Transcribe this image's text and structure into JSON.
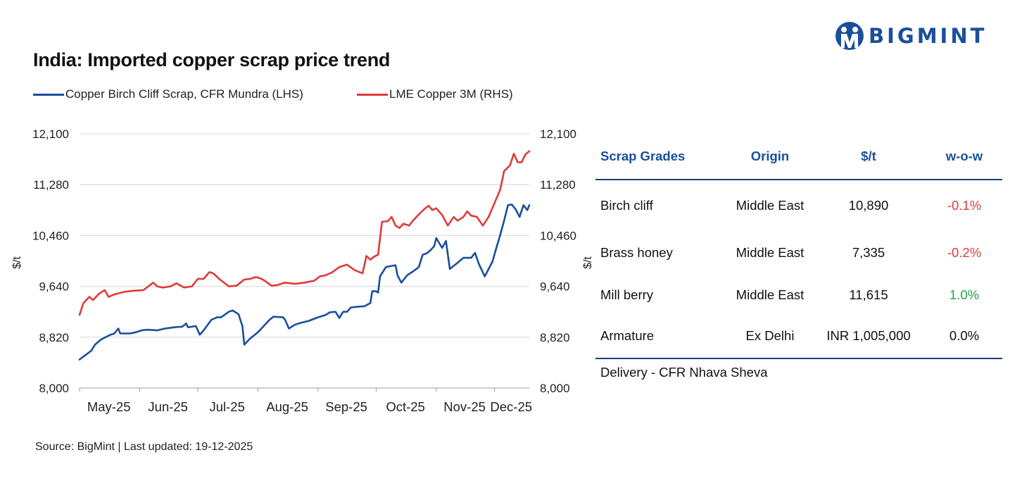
{
  "title": "India: Imported copper scrap price trend",
  "brand": {
    "name": "BIGMINT",
    "color": "#1a4f9c"
  },
  "source": "Source: BigMint | Last updated: 19-12-2025",
  "chart_data": {
    "type": "line",
    "title": "India: Imported copper scrap price trend",
    "x_labels": [
      "May-25",
      "Jun-25",
      "Jul-25",
      "Aug-25",
      "Sep-25",
      "Oct-25",
      "Nov-25",
      "Dec-25"
    ],
    "x_range": [
      "2025-05-01",
      "2025-12-19"
    ],
    "ylabel_left": "$/t",
    "ylabel_right": "$/t",
    "ylim_left": [
      8000,
      12100
    ],
    "ylim_right": [
      8000,
      12100
    ],
    "yticks_left": [
      "8,000",
      "8,820",
      "9,640",
      "10,460",
      "11,280",
      "12,100"
    ],
    "yticks_right": [
      "8,000",
      "8,820",
      "9,640",
      "10,460",
      "11,280",
      "12,100"
    ],
    "grid": true,
    "legend_position": "top",
    "series": [
      {
        "name": "Copper Birch Cliff Scrap, CFR Mundra (LHS)",
        "axis": "left",
        "color": "#1a4f9c",
        "points": [
          [
            "2025-05-01",
            8460
          ],
          [
            "2025-05-04",
            8530
          ],
          [
            "2025-05-07",
            8600
          ],
          [
            "2025-05-09",
            8700
          ],
          [
            "2025-05-12",
            8780
          ],
          [
            "2025-05-15",
            8830
          ],
          [
            "2025-05-17",
            8860
          ],
          [
            "2025-05-19",
            8880
          ],
          [
            "2025-05-21",
            8960
          ],
          [
            "2025-05-22",
            8880
          ],
          [
            "2025-05-27",
            8880
          ],
          [
            "2025-05-30",
            8900
          ],
          [
            "2025-06-02",
            8930
          ],
          [
            "2025-06-05",
            8940
          ],
          [
            "2025-06-10",
            8930
          ],
          [
            "2025-06-14",
            8960
          ],
          [
            "2025-06-19",
            8980
          ],
          [
            "2025-06-23",
            8990
          ],
          [
            "2025-06-25",
            9040
          ],
          [
            "2025-06-26",
            8980
          ],
          [
            "2025-06-30",
            9000
          ],
          [
            "2025-07-02",
            8860
          ],
          [
            "2025-07-04",
            8930
          ],
          [
            "2025-07-08",
            9100
          ],
          [
            "2025-07-11",
            9140
          ],
          [
            "2025-07-13",
            9140
          ],
          [
            "2025-07-17",
            9230
          ],
          [
            "2025-07-19",
            9250
          ],
          [
            "2025-07-22",
            9190
          ],
          [
            "2025-07-24",
            9000
          ],
          [
            "2025-07-25",
            8700
          ],
          [
            "2025-07-28",
            8800
          ],
          [
            "2025-08-01",
            8900
          ],
          [
            "2025-08-04",
            9000
          ],
          [
            "2025-08-07",
            9100
          ],
          [
            "2025-08-09",
            9150
          ],
          [
            "2025-08-14",
            9140
          ],
          [
            "2025-08-15",
            9100
          ],
          [
            "2025-08-17",
            8960
          ],
          [
            "2025-08-20",
            9020
          ],
          [
            "2025-08-23",
            9050
          ],
          [
            "2025-08-27",
            9080
          ],
          [
            "2025-09-01",
            9140
          ],
          [
            "2025-09-05",
            9180
          ],
          [
            "2025-09-07",
            9220
          ],
          [
            "2025-09-10",
            9230
          ],
          [
            "2025-09-12",
            9130
          ],
          [
            "2025-09-14",
            9230
          ],
          [
            "2025-09-16",
            9230
          ],
          [
            "2025-09-18",
            9300
          ],
          [
            "2025-09-21",
            9310
          ],
          [
            "2025-09-25",
            9320
          ],
          [
            "2025-09-28",
            9370
          ],
          [
            "2025-09-29",
            9560
          ],
          [
            "2025-10-01",
            9560
          ],
          [
            "2025-10-02",
            9540
          ],
          [
            "2025-10-03",
            9800
          ],
          [
            "2025-10-06",
            9950
          ],
          [
            "2025-10-09",
            9970
          ],
          [
            "2025-10-11",
            9980
          ],
          [
            "2025-10-12",
            9820
          ],
          [
            "2025-10-14",
            9700
          ],
          [
            "2025-10-17",
            9820
          ],
          [
            "2025-10-20",
            9880
          ],
          [
            "2025-10-23",
            9950
          ],
          [
            "2025-10-25",
            10150
          ],
          [
            "2025-10-27",
            10170
          ],
          [
            "2025-10-29",
            10220
          ],
          [
            "2025-10-31",
            10290
          ],
          [
            "2025-11-01",
            10420
          ],
          [
            "2025-11-04",
            10260
          ],
          [
            "2025-11-06",
            10370
          ],
          [
            "2025-11-08",
            9920
          ],
          [
            "2025-11-12",
            10020
          ],
          [
            "2025-11-15",
            10100
          ],
          [
            "2025-11-19",
            10100
          ],
          [
            "2025-11-21",
            10180
          ],
          [
            "2025-11-23",
            10000
          ],
          [
            "2025-11-26",
            9800
          ],
          [
            "2025-11-30",
            10040
          ],
          [
            "2025-12-02",
            10260
          ],
          [
            "2025-12-04",
            10470
          ],
          [
            "2025-12-06",
            10700
          ],
          [
            "2025-12-08",
            10950
          ],
          [
            "2025-12-10",
            10960
          ],
          [
            "2025-12-12",
            10880
          ],
          [
            "2025-12-14",
            10760
          ],
          [
            "2025-12-16",
            10950
          ],
          [
            "2025-12-18",
            10870
          ],
          [
            "2025-12-19",
            10950
          ]
        ]
      },
      {
        "name": "LME Copper 3M (RHS)",
        "axis": "right",
        "color": "#e03a3a",
        "points": [
          [
            "2025-05-01",
            9180
          ],
          [
            "2025-05-03",
            9370
          ],
          [
            "2025-05-06",
            9470
          ],
          [
            "2025-05-08",
            9420
          ],
          [
            "2025-05-11",
            9520
          ],
          [
            "2025-05-14",
            9580
          ],
          [
            "2025-05-16",
            9470
          ],
          [
            "2025-05-19",
            9510
          ],
          [
            "2025-05-24",
            9550
          ],
          [
            "2025-05-29",
            9570
          ],
          [
            "2025-06-03",
            9580
          ],
          [
            "2025-06-08",
            9700
          ],
          [
            "2025-06-10",
            9640
          ],
          [
            "2025-06-13",
            9620
          ],
          [
            "2025-06-17",
            9640
          ],
          [
            "2025-06-20",
            9690
          ],
          [
            "2025-06-24",
            9620
          ],
          [
            "2025-06-28",
            9640
          ],
          [
            "2025-07-01",
            9760
          ],
          [
            "2025-07-04",
            9760
          ],
          [
            "2025-07-07",
            9870
          ],
          [
            "2025-07-09",
            9850
          ],
          [
            "2025-07-12",
            9760
          ],
          [
            "2025-07-17",
            9640
          ],
          [
            "2025-07-21",
            9650
          ],
          [
            "2025-07-25",
            9750
          ],
          [
            "2025-07-28",
            9760
          ],
          [
            "2025-07-31",
            9790
          ],
          [
            "2025-08-03",
            9760
          ],
          [
            "2025-08-05",
            9720
          ],
          [
            "2025-08-08",
            9650
          ],
          [
            "2025-08-11",
            9660
          ],
          [
            "2025-08-15",
            9700
          ],
          [
            "2025-08-20",
            9680
          ],
          [
            "2025-08-25",
            9700
          ],
          [
            "2025-08-30",
            9730
          ],
          [
            "2025-09-02",
            9800
          ],
          [
            "2025-09-05",
            9820
          ],
          [
            "2025-09-08",
            9860
          ],
          [
            "2025-09-12",
            9950
          ],
          [
            "2025-09-16",
            9990
          ],
          [
            "2025-09-20",
            9900
          ],
          [
            "2025-09-24",
            9850
          ],
          [
            "2025-09-26",
            10130
          ],
          [
            "2025-09-28",
            10070
          ],
          [
            "2025-09-30",
            10120
          ],
          [
            "2025-10-02",
            10150
          ],
          [
            "2025-10-04",
            10680
          ],
          [
            "2025-10-07",
            10690
          ],
          [
            "2025-10-09",
            10760
          ],
          [
            "2025-10-11",
            10620
          ],
          [
            "2025-10-13",
            10580
          ],
          [
            "2025-10-15",
            10650
          ],
          [
            "2025-10-18",
            10620
          ],
          [
            "2025-10-20",
            10700
          ],
          [
            "2025-10-23",
            10800
          ],
          [
            "2025-10-26",
            10890
          ],
          [
            "2025-10-28",
            10940
          ],
          [
            "2025-10-30",
            10870
          ],
          [
            "2025-11-01",
            10900
          ],
          [
            "2025-11-04",
            10790
          ],
          [
            "2025-11-07",
            10620
          ],
          [
            "2025-11-10",
            10760
          ],
          [
            "2025-11-12",
            10700
          ],
          [
            "2025-11-15",
            10760
          ],
          [
            "2025-11-17",
            10850
          ],
          [
            "2025-11-19",
            10780
          ],
          [
            "2025-11-22",
            10760
          ],
          [
            "2025-11-25",
            10620
          ],
          [
            "2025-11-28",
            10760
          ],
          [
            "2025-12-01",
            10980
          ],
          [
            "2025-12-04",
            11200
          ],
          [
            "2025-12-06",
            11500
          ],
          [
            "2025-12-09",
            11590
          ],
          [
            "2025-12-11",
            11780
          ],
          [
            "2025-12-13",
            11640
          ],
          [
            "2025-12-15",
            11640
          ],
          [
            "2025-12-17",
            11770
          ],
          [
            "2025-12-19",
            11820
          ]
        ]
      }
    ]
  },
  "table": {
    "headers": [
      "Scrap Grades",
      "Origin",
      "$/t",
      "w-o-w"
    ],
    "rows": [
      {
        "grade": "Birch cliff",
        "origin": "Middle East",
        "price": "10,890",
        "wow": "-0.1%",
        "wow_color": "#e03a3a"
      },
      {
        "grade": "Brass honey",
        "origin": "Middle East",
        "price": "7,335",
        "wow": "-0.2%",
        "wow_color": "#e03a3a"
      },
      {
        "grade": "Mill berry",
        "origin": "Middle East",
        "price": "11,615",
        "wow": "1.0%",
        "wow_color": "#2aa14a"
      },
      {
        "grade": "Armature",
        "origin": "Ex Delhi",
        "price": "INR 1,005,000",
        "wow": "0.0%",
        "wow_color": "#111111"
      }
    ],
    "footnote": "Delivery - CFR Nhava Sheva"
  }
}
